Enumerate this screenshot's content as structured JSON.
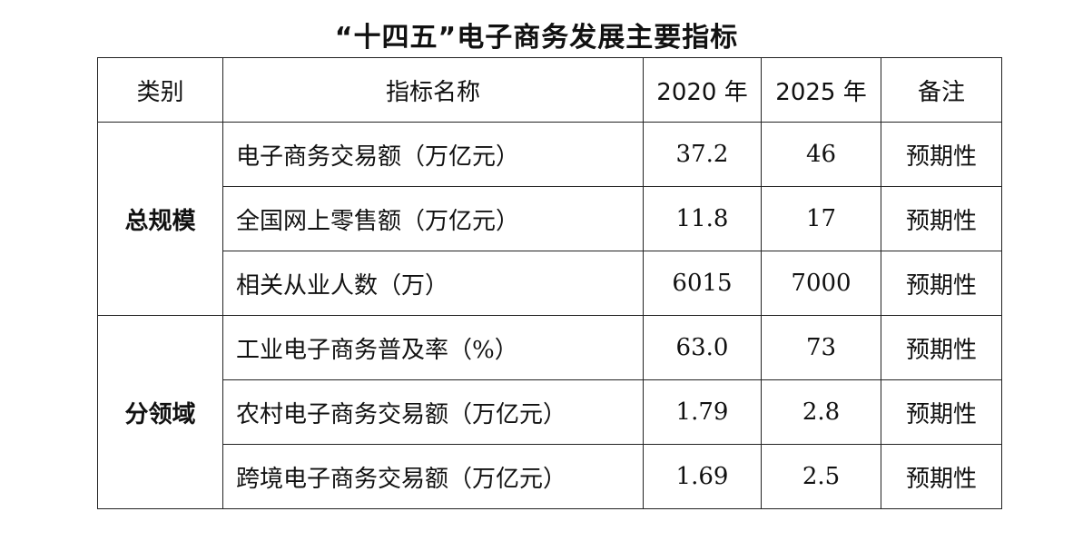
{
  "title": "“十四五”电子商务发展主要指标",
  "table": {
    "header": [
      "类别",
      "指标名称",
      "2020 年",
      "2025 年",
      "备注"
    ],
    "groups": [
      {
        "category": "总规模",
        "rows": [
          [
            "电子商务交易额（万亿元）",
            "37.2",
            "46",
            "预期性"
          ],
          [
            "全国网上零售额（万亿元）",
            "11.8",
            "17",
            "预期性"
          ],
          [
            "相关从业人数（万）",
            "6015",
            "7000",
            "预期性"
          ]
        ]
      },
      {
        "category": "分领域",
        "rows": [
          [
            "工业电子商务普及率（%）",
            "63.0",
            "73",
            "预期性"
          ],
          [
            "农村电子商务交易额（万亿元）",
            "1.79",
            "2.8",
            "预期性"
          ],
          [
            "跨境电子商务交易额（万亿元）",
            "1.69",
            "2.5",
            "预期性"
          ]
        ]
      }
    ]
  }
}
